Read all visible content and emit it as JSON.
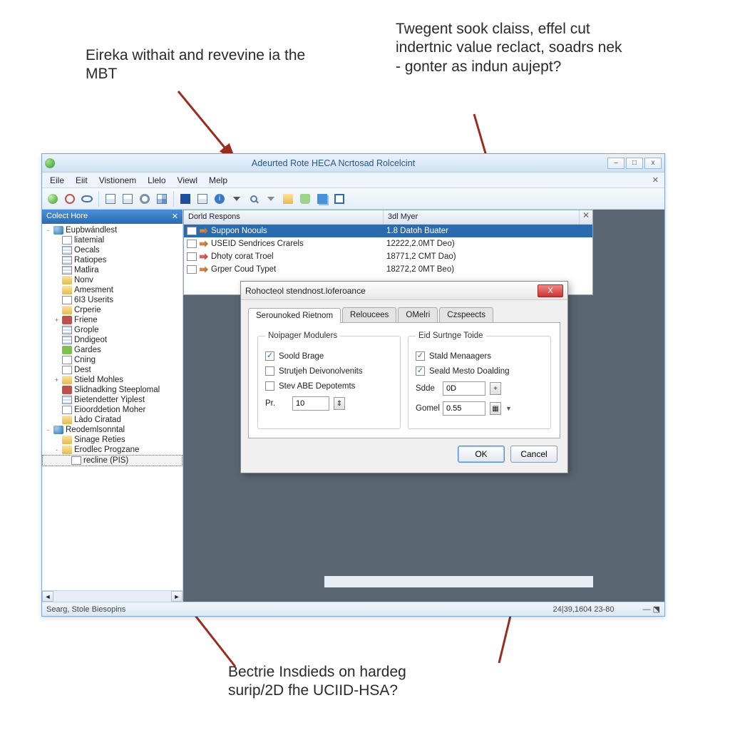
{
  "annotations": {
    "top_left": "Eireka withait and revevine ia the MBT",
    "top_right": "Twegent sook claiss, effel cut indertnic value reclact, soadrs nek - gonter as indun aujept?",
    "bottom": "Bectrie Insdieds on hardeg surip/2D fhe UCIID-HSA?"
  },
  "window": {
    "title": "Adeurted Rote HECA Ncrtosad Rolcelcint",
    "controls": {
      "min": "–",
      "max": "□",
      "close": "x"
    }
  },
  "menubar": [
    "Eile",
    "Eiit",
    "Vistionem",
    "Llelo",
    "Viewl",
    "Melp"
  ],
  "sidebar": {
    "header": "Colect Hore",
    "close": "✕",
    "items": [
      {
        "exp": "-",
        "icon": "ti-root",
        "label": "Eupbwándlest",
        "ind": 0
      },
      {
        "exp": "",
        "icon": "ti-doc",
        "label": "liatemial",
        "ind": 1
      },
      {
        "exp": "",
        "icon": "ti-grid",
        "label": "Oecals",
        "ind": 1
      },
      {
        "exp": "",
        "icon": "ti-grid",
        "label": "Ratiopes",
        "ind": 1
      },
      {
        "exp": "",
        "icon": "ti-grid",
        "label": "Matlira",
        "ind": 1
      },
      {
        "exp": "",
        "icon": "ti-folder",
        "label": "Nonv",
        "ind": 1
      },
      {
        "exp": "",
        "icon": "ti-folder",
        "label": "Amesment",
        "ind": 1
      },
      {
        "exp": "",
        "icon": "ti-doc",
        "label": "6I3 Userits",
        "ind": 1
      },
      {
        "exp": "",
        "icon": "ti-folder",
        "label": "Crperie",
        "ind": 1
      },
      {
        "exp": "+",
        "icon": "ti-red",
        "label": "Friene",
        "ind": 1
      },
      {
        "exp": "",
        "icon": "ti-grid",
        "label": "Grople",
        "ind": 1
      },
      {
        "exp": "",
        "icon": "ti-grid",
        "label": "Dndigeot",
        "ind": 1
      },
      {
        "exp": "",
        "icon": "ti-green",
        "label": "Gardes",
        "ind": 1
      },
      {
        "exp": "",
        "icon": "ti-doc",
        "label": "Cning",
        "ind": 1
      },
      {
        "exp": "",
        "icon": "ti-doc",
        "label": "Dest",
        "ind": 1
      },
      {
        "exp": "+",
        "icon": "ti-folder",
        "label": "Stield Mohles",
        "ind": 1
      },
      {
        "exp": "",
        "icon": "ti-red",
        "label": "Slidnadking Steeplomal",
        "ind": 1
      },
      {
        "exp": "",
        "icon": "ti-grid",
        "label": "Bietendetter Yiplest",
        "ind": 1
      },
      {
        "exp": "",
        "icon": "ti-doc",
        "label": "Eioorddetion Moher",
        "ind": 1
      },
      {
        "exp": "",
        "icon": "ti-folder",
        "label": "Làdo Ciratad",
        "ind": 1
      },
      {
        "exp": "-",
        "icon": "ti-root",
        "label": "Reodemlsonntal",
        "ind": 0
      },
      {
        "exp": "",
        "icon": "ti-folder",
        "label": "Sinage Reties",
        "ind": 1
      },
      {
        "exp": "-",
        "icon": "ti-folder",
        "label": "Erodlec Progzane",
        "ind": 1
      },
      {
        "exp": "",
        "icon": "ti-doc",
        "label": "recline (PIS)",
        "ind": 2,
        "sel": true
      }
    ]
  },
  "list": {
    "col1": "Dorld Respons",
    "col2": "3dl Myer",
    "rows": [
      {
        "icon": "brown",
        "name": "Suppon Noouls",
        "val": "1.8 Datoh Buater",
        "sel": true
      },
      {
        "icon": "brown",
        "name": "USEID Sendrices Crarels",
        "val": "12222,2.0MT Deo)"
      },
      {
        "icon": "red",
        "name": "Dhoty corat Troel",
        "val": "18771,2 CMT Dao)"
      },
      {
        "icon": "brown",
        "name": "Grper Coud Typet",
        "val": "18272,2 0MT Beo)"
      }
    ]
  },
  "dialog": {
    "title": "Rohocteol stendnost.loferoance",
    "tabs": [
      "Serounoked Rietnom",
      "Reloucees",
      "OMelri",
      "Czspeects"
    ],
    "group_left": {
      "legend": "Noipager Modulers",
      "chk1": {
        "label": "Soold Brage",
        "on": true
      },
      "chk2": {
        "label": "Strutjeh Deivonolvenits",
        "on": false
      },
      "chk3": {
        "label": "Stev ABE Depotemts",
        "on": false
      },
      "num": {
        "label": "Pr.",
        "value": "10"
      }
    },
    "group_right": {
      "legend": "Eid Surtnge Toide",
      "chk1": {
        "label": "Stald Menaagers",
        "on": true
      },
      "chk2": {
        "label": "Seald Mesto Doalding",
        "on": true
      },
      "num1": {
        "label": "Sdde",
        "value": "0D"
      },
      "num2": {
        "label": "Gomel",
        "value": "0.55"
      }
    },
    "ok": "OK",
    "cancel": "Cancel"
  },
  "statusbar": {
    "left": "Searg, Stole Biesopins",
    "right": "24|39,1604 23-80"
  },
  "arrows": {
    "color": "#9b2c20",
    "stroke_width": 3
  }
}
